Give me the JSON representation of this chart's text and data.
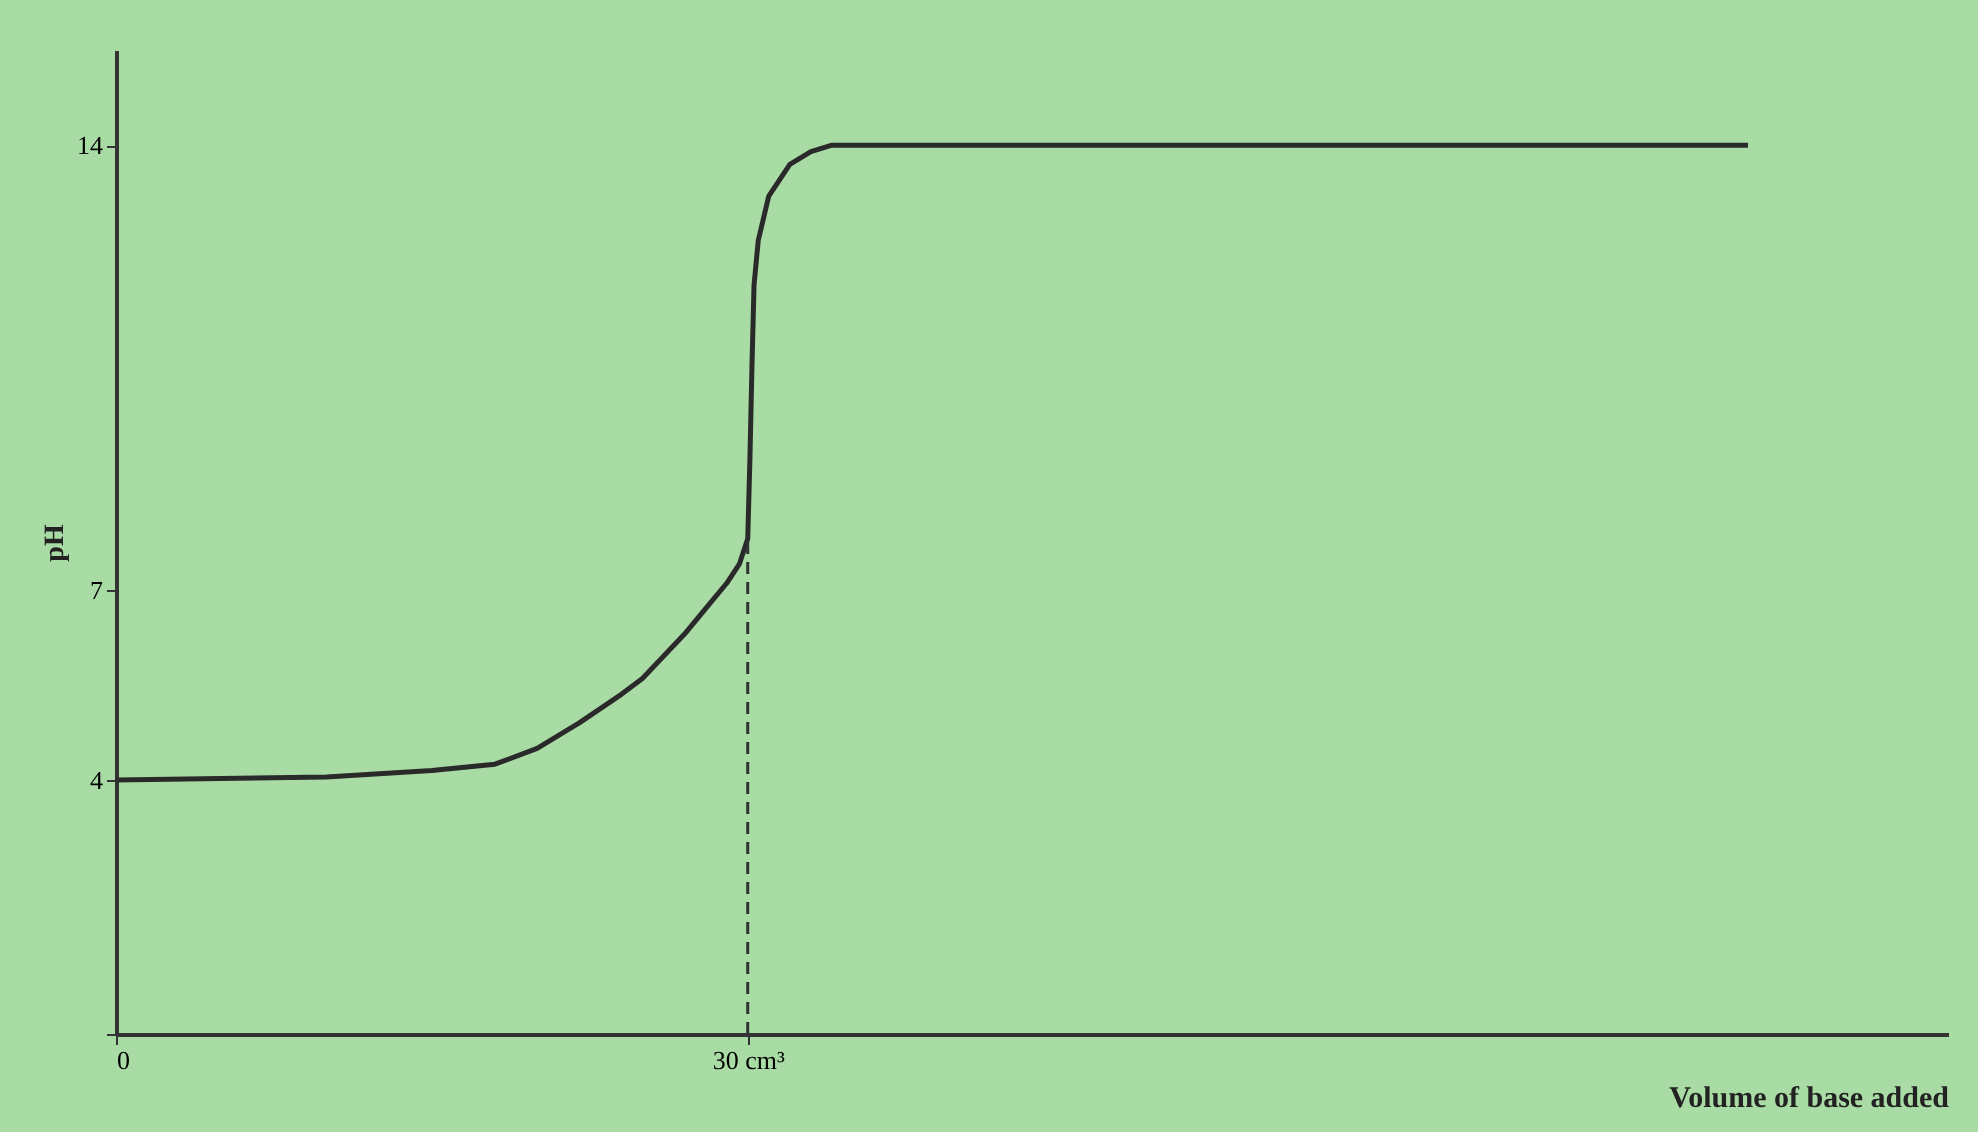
{
  "chart_data": {
    "type": "line",
    "xlabel": "Volume of base added",
    "ylabel": "pH",
    "xlim": [
      0,
      87
    ],
    "ylim": [
      0,
      15.5
    ],
    "xticks": [
      0,
      {
        "value": 30,
        "label": "30 cm³"
      }
    ],
    "yticks": [
      {
        "value": 0,
        "label": null
      },
      4,
      7,
      14
    ],
    "grid": false,
    "marker": "none",
    "line_style": "solid",
    "ref_lines": [
      {
        "axis": "x",
        "value": 30,
        "line_style": "dashed",
        "color": "#333333"
      }
    ],
    "series": [
      {
        "color": "#2a2a2a",
        "x": [
          0,
          10,
          15,
          18,
          20,
          22,
          24,
          25,
          26,
          27,
          28,
          29,
          29.6,
          30,
          30.1,
          30.2,
          30.3,
          30.5,
          31,
          32,
          33,
          34,
          40,
          77.5
        ],
        "values": [
          4,
          4.05,
          4.15,
          4.25,
          4.5,
          4.9,
          5.35,
          5.6,
          5.95,
          6.3,
          6.7,
          7.1,
          7.4,
          7.8,
          9,
          10.5,
          11.8,
          12.5,
          13.2,
          13.7,
          13.9,
          14,
          14,
          14
        ]
      }
    ]
  }
}
